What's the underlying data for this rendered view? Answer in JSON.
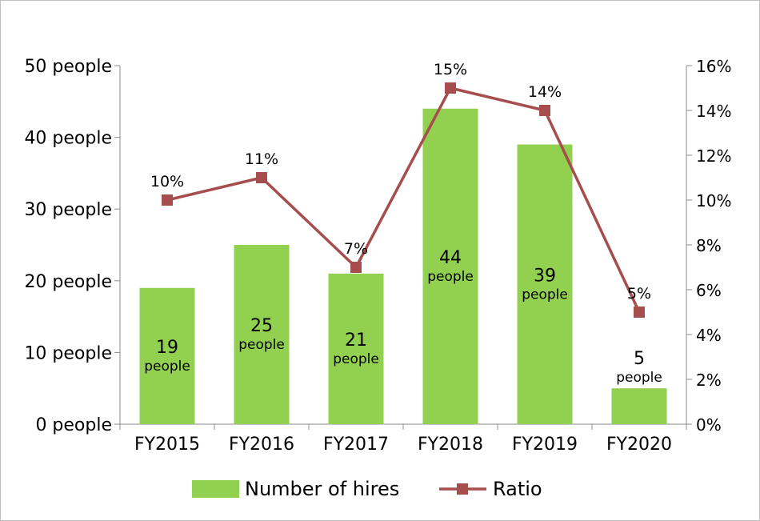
{
  "chart_data": {
    "type": "bar",
    "categories": [
      "FY2015",
      "FY2016",
      "FY2017",
      "FY2018",
      "FY2019",
      "FY2020"
    ],
    "series": [
      {
        "name": "Number of hires",
        "type": "bar",
        "axis": "left",
        "values": [
          19,
          25,
          21,
          44,
          39,
          5
        ],
        "value_labels": [
          "19",
          "25",
          "21",
          "44",
          "39",
          "5"
        ],
        "unit_label": "people",
        "color": "#92d050"
      },
      {
        "name": "Ratio",
        "type": "line",
        "axis": "right",
        "values": [
          10,
          11,
          7,
          15,
          14,
          5
        ],
        "value_labels": [
          "10%",
          "11%",
          "7%",
          "15%",
          "14%",
          "5%"
        ],
        "color": "#a64d4d"
      }
    ],
    "y_left": {
      "ylim": [
        0,
        50
      ],
      "ticks": [
        0,
        10,
        20,
        30,
        40,
        50
      ],
      "tick_labels": [
        "0 people",
        "10 people",
        "20 people",
        "30 people",
        "40 people",
        "50 people"
      ]
    },
    "y_right": {
      "ylim": [
        0,
        16
      ],
      "ticks": [
        0,
        2,
        4,
        6,
        8,
        10,
        12,
        14,
        16
      ],
      "tick_labels": [
        "0%",
        "2%",
        "4%",
        "6%",
        "8%",
        "10%",
        "12%",
        "14%",
        "16%"
      ]
    },
    "grid": false,
    "legend": {
      "placement": "bottom",
      "items": [
        "Number of hires",
        "Ratio"
      ]
    }
  }
}
